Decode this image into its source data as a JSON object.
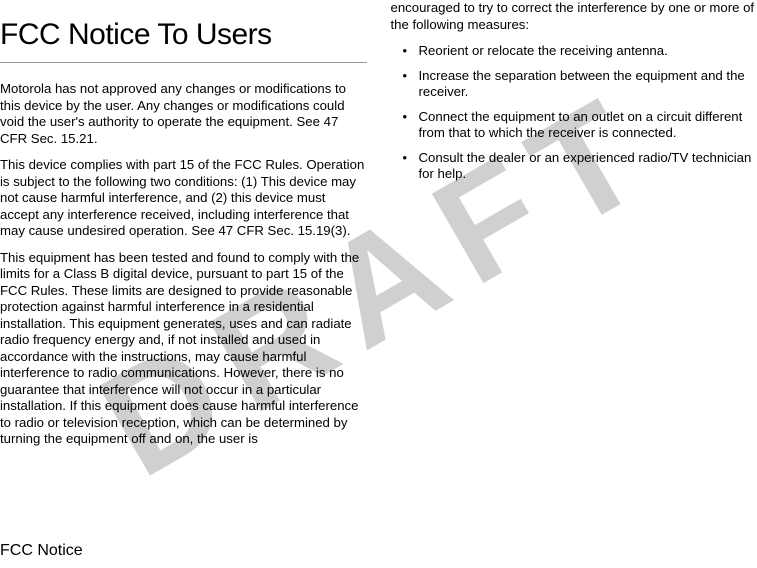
{
  "watermark": "DRAFT",
  "title": "FCC Notice To Users",
  "paragraphs_left": [
    "Motorola has not approved any changes or modifications to this device by the user. Any changes or modifications could void the user's authority to operate the equipment. See 47 CFR Sec. 15.21.",
    "This device complies with part 15 of the FCC Rules. Operation is subject to the following two conditions: (1) This device may not cause harmful interference, and (2) this device must accept any interference received, including interference that may cause undesired operation. See 47 CFR Sec. 15.19(3).",
    "This equipment has been tested and found to comply with the limits for a Class B digital device, pursuant to part 15 of the FCC Rules. These limits are designed to provide reasonable protection against harmful interference in a residential installation. This equipment generates, uses and can radiate radio frequency energy and, if not installed and used in accordance with the instructions, may cause harmful interference to radio communications. However, there is no guarantee that interference will not occur in a particular installation. If this equipment does cause harmful interference to radio or television reception, which can be determined by turning the equipment off and on, the user is"
  ],
  "paragraph_right_intro": "encouraged to try to correct the interference by one or more of the following measures:",
  "bullets": [
    "Reorient or relocate the receiving antenna.",
    "Increase the separation between the equipment and the receiver.",
    "Connect the equipment to an outlet on a circuit different from that to which the receiver is connected.",
    "Consult the dealer or an experienced radio/TV technician for help."
  ],
  "footer": "FCC Notice",
  "colors": {
    "background": "#ffffff",
    "text": "#000000",
    "watermark": "#d0d0d0",
    "rule": "#999999"
  },
  "fonts": {
    "title_size": 30,
    "body_size": 13.2,
    "footer_size": 16,
    "watermark_size": 150
  }
}
